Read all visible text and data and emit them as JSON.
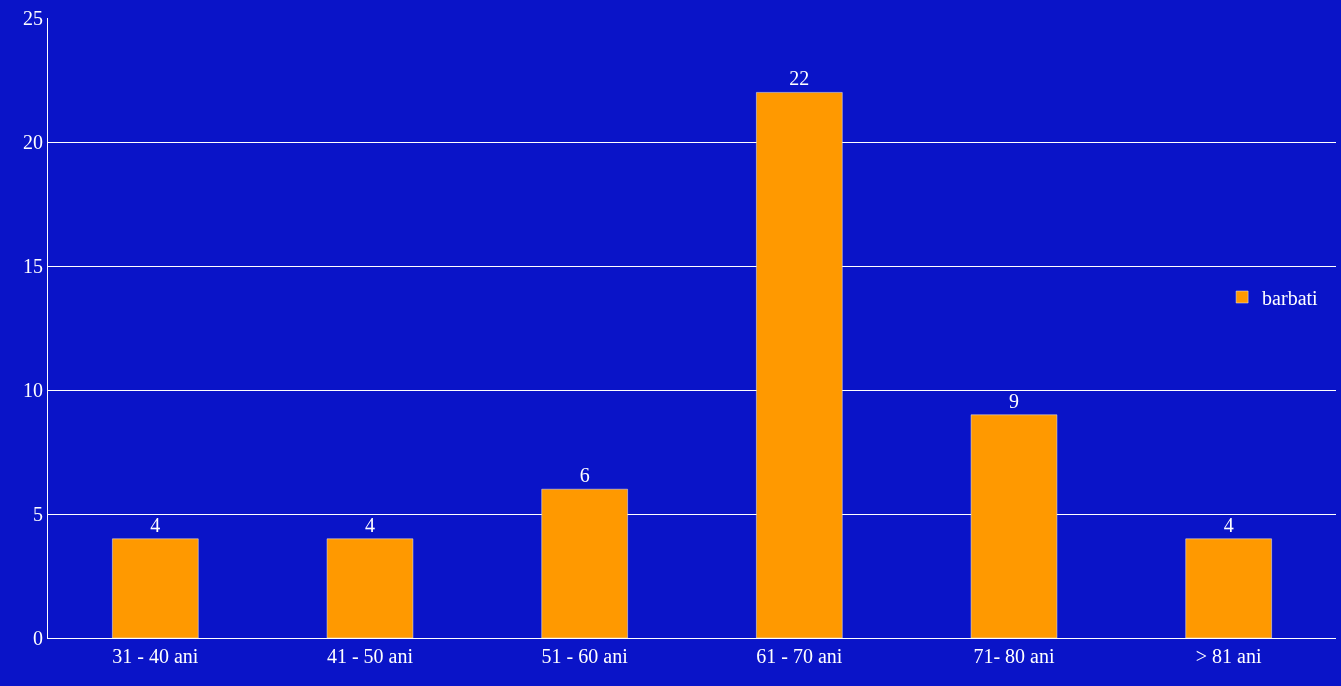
{
  "chart_data": {
    "type": "bar",
    "categories": [
      "31 - 40 ani",
      "41 - 50 ani",
      "51 - 60 ani",
      "61 - 70 ani",
      "71- 80 ani",
      "> 81 ani"
    ],
    "series": [
      {
        "name": "barbati",
        "color": "#ff9900",
        "values": [
          4,
          4,
          6,
          22,
          9,
          4
        ]
      }
    ],
    "ylim": [
      0,
      25
    ],
    "yticks": [
      0,
      5,
      10,
      15,
      20,
      25
    ],
    "grid": "y",
    "legend": "right",
    "data_labels": true
  }
}
